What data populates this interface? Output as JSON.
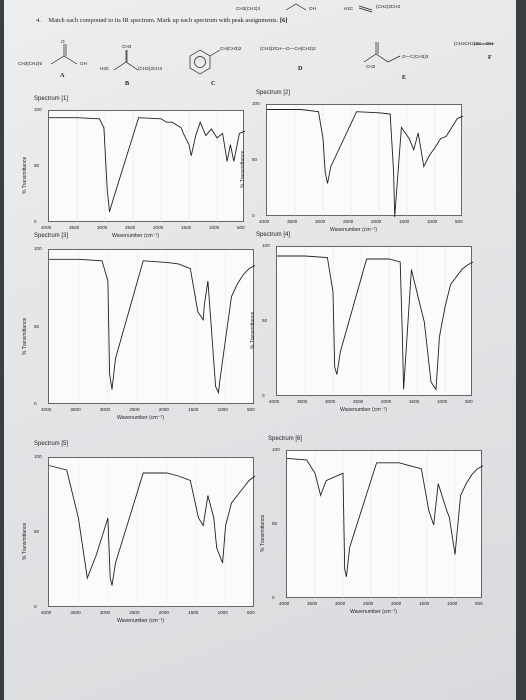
{
  "question": {
    "number": "4.",
    "text": "Match each compound to its IR spectrum. Mark up each spectrum with peak assignments.",
    "points": "[6]"
  },
  "compounds": {
    "letters": [
      "A",
      "B",
      "C",
      "D",
      "E",
      "F"
    ],
    "labels": {
      "a_left": "CH3(CH2)5",
      "a_right": "OH",
      "b_top": "CH3",
      "b_left": "H3C",
      "b_right": "(CH2)3CH3",
      "c_sub": "CH(CH3)2",
      "c_top1": "CH3(CH2)3",
      "c_top2": "OH",
      "c_top3": "H2C",
      "c_top4": "(CH2)3CH3",
      "d_text": "(CH3)2CH—O—CH(CH3)2",
      "e_left": "CH3",
      "e_right": "O—C(CH3)3",
      "f_text": "(CH3CH2)3C—OH"
    }
  },
  "spectra": [
    {
      "title": "Spectrum [1]",
      "ylabel": "% Transmittance",
      "xlabel": "Wavenumber (cm⁻¹)"
    },
    {
      "title": "Spectrum [2]",
      "ylabel": "% Transmittance",
      "xlabel": "Wavenumber (cm⁻¹)"
    },
    {
      "title": "Spectrum [3]",
      "ylabel": "% Transmittance",
      "xlabel": "Wavenumber (cm⁻¹)"
    },
    {
      "title": "Spectrum [4]",
      "ylabel": "% Transmittance",
      "xlabel": "Wavenumber (cm⁻¹)"
    },
    {
      "title": "Spectrum [5]",
      "ylabel": "% Transmittance",
      "xlabel": "Wavenumber (cm⁻¹)"
    },
    {
      "title": "Spectrum [6]",
      "ylabel": "% Transmittance",
      "xlabel": "Wavenumber (cm⁻¹)"
    }
  ],
  "y_ticks": [
    "100",
    "50",
    "0"
  ],
  "x_ticks": [
    "4000",
    "3500",
    "3000",
    "2500",
    "2000",
    "1500",
    "1000",
    "500"
  ],
  "chart_data": [
    {
      "type": "line",
      "title": "Spectrum [1]",
      "xlabel": "Wavenumber (cm⁻¹)",
      "ylabel": "% Transmittance",
      "xlim": [
        4000,
        500
      ],
      "ylim": [
        0,
        100
      ],
      "x": [
        4000,
        3500,
        3100,
        3020,
        2960,
        2920,
        2860,
        2400,
        2000,
        1900,
        1800,
        1640,
        1600,
        1500,
        1460,
        1380,
        1300,
        1200,
        1100,
        1000,
        900,
        820,
        760,
        700,
        600,
        500
      ],
      "y": [
        94,
        94,
        93,
        85,
        30,
        10,
        20,
        94,
        93,
        90,
        90,
        85,
        80,
        70,
        60,
        78,
        90,
        78,
        84,
        76,
        80,
        55,
        70,
        55,
        80,
        82
      ]
    },
    {
      "type": "line",
      "title": "Spectrum [2]",
      "xlabel": "Wavenumber (cm⁻¹)",
      "ylabel": "% Transmittance",
      "xlim": [
        4000,
        500
      ],
      "ylim": [
        0,
        100
      ],
      "x": [
        4000,
        3400,
        3080,
        3000,
        2960,
        2920,
        2860,
        2400,
        2000,
        1800,
        1740,
        1720,
        1600,
        1460,
        1380,
        1300,
        1200,
        1100,
        1000,
        900,
        800,
        700,
        600,
        500
      ],
      "y": [
        96,
        96,
        94,
        70,
        40,
        30,
        45,
        94,
        93,
        92,
        40,
        0,
        80,
        70,
        60,
        75,
        45,
        55,
        62,
        70,
        72,
        80,
        88,
        90
      ]
    },
    {
      "type": "line",
      "title": "Spectrum [3]",
      "xlabel": "Wavenumber (cm⁻¹)",
      "ylabel": "% Transmittance",
      "xlim": [
        4000,
        500
      ],
      "ylim": [
        0,
        100
      ],
      "x": [
        4000,
        3500,
        3100,
        3000,
        2970,
        2930,
        2870,
        2400,
        2000,
        1800,
        1600,
        1470,
        1380,
        1360,
        1300,
        1170,
        1120,
        1100,
        1010,
        900,
        800,
        700,
        600,
        500
      ],
      "y": [
        94,
        94,
        93,
        80,
        20,
        10,
        30,
        93,
        92,
        91,
        88,
        60,
        55,
        65,
        80,
        12,
        8,
        15,
        40,
        70,
        78,
        84,
        88,
        90
      ]
    },
    {
      "type": "line",
      "title": "Spectrum [4]",
      "xlabel": "Wavenumber (cm⁻¹)",
      "ylabel": "% Transmittance",
      "xlim": [
        4000,
        500
      ],
      "ylim": [
        0,
        100
      ],
      "x": [
        4000,
        3500,
        3100,
        3000,
        2970,
        2930,
        2870,
        2400,
        2000,
        1800,
        1760,
        1740,
        1600,
        1470,
        1370,
        1250,
        1160,
        1100,
        1000,
        900,
        800,
        700,
        600,
        500
      ],
      "y": [
        94,
        94,
        93,
        70,
        20,
        15,
        30,
        92,
        92,
        90,
        40,
        5,
        85,
        65,
        50,
        10,
        5,
        40,
        60,
        75,
        80,
        85,
        88,
        90
      ]
    },
    {
      "type": "line",
      "title": "Spectrum [5]",
      "xlabel": "Wavenumber (cm⁻¹)",
      "ylabel": "% Transmittance",
      "xlim": [
        4000,
        500
      ],
      "ylim": [
        0,
        100
      ],
      "x": [
        4000,
        3700,
        3500,
        3350,
        3200,
        3000,
        2960,
        2930,
        2870,
        2400,
        2000,
        1800,
        1600,
        1460,
        1380,
        1300,
        1200,
        1150,
        1050,
        1000,
        900,
        800,
        700,
        600,
        500
      ],
      "y": [
        95,
        92,
        60,
        20,
        35,
        60,
        20,
        15,
        30,
        90,
        90,
        88,
        85,
        60,
        55,
        75,
        60,
        40,
        30,
        55,
        70,
        75,
        80,
        85,
        88
      ]
    },
    {
      "type": "line",
      "title": "Spectrum [6]",
      "xlabel": "Wavenumber (cm⁻¹)",
      "ylabel": "% Transmittance",
      "xlim": [
        4000,
        500
      ],
      "ylim": [
        0,
        100
      ],
      "x": [
        4000,
        3650,
        3500,
        3400,
        3300,
        3000,
        2970,
        2940,
        2880,
        2400,
        2000,
        1800,
        1600,
        1470,
        1380,
        1300,
        1150,
        1100,
        1000,
        950,
        900,
        800,
        700,
        600,
        500
      ],
      "y": [
        95,
        94,
        85,
        70,
        80,
        85,
        20,
        15,
        35,
        92,
        92,
        90,
        88,
        60,
        50,
        78,
        60,
        55,
        30,
        50,
        70,
        78,
        84,
        88,
        90
      ]
    }
  ]
}
